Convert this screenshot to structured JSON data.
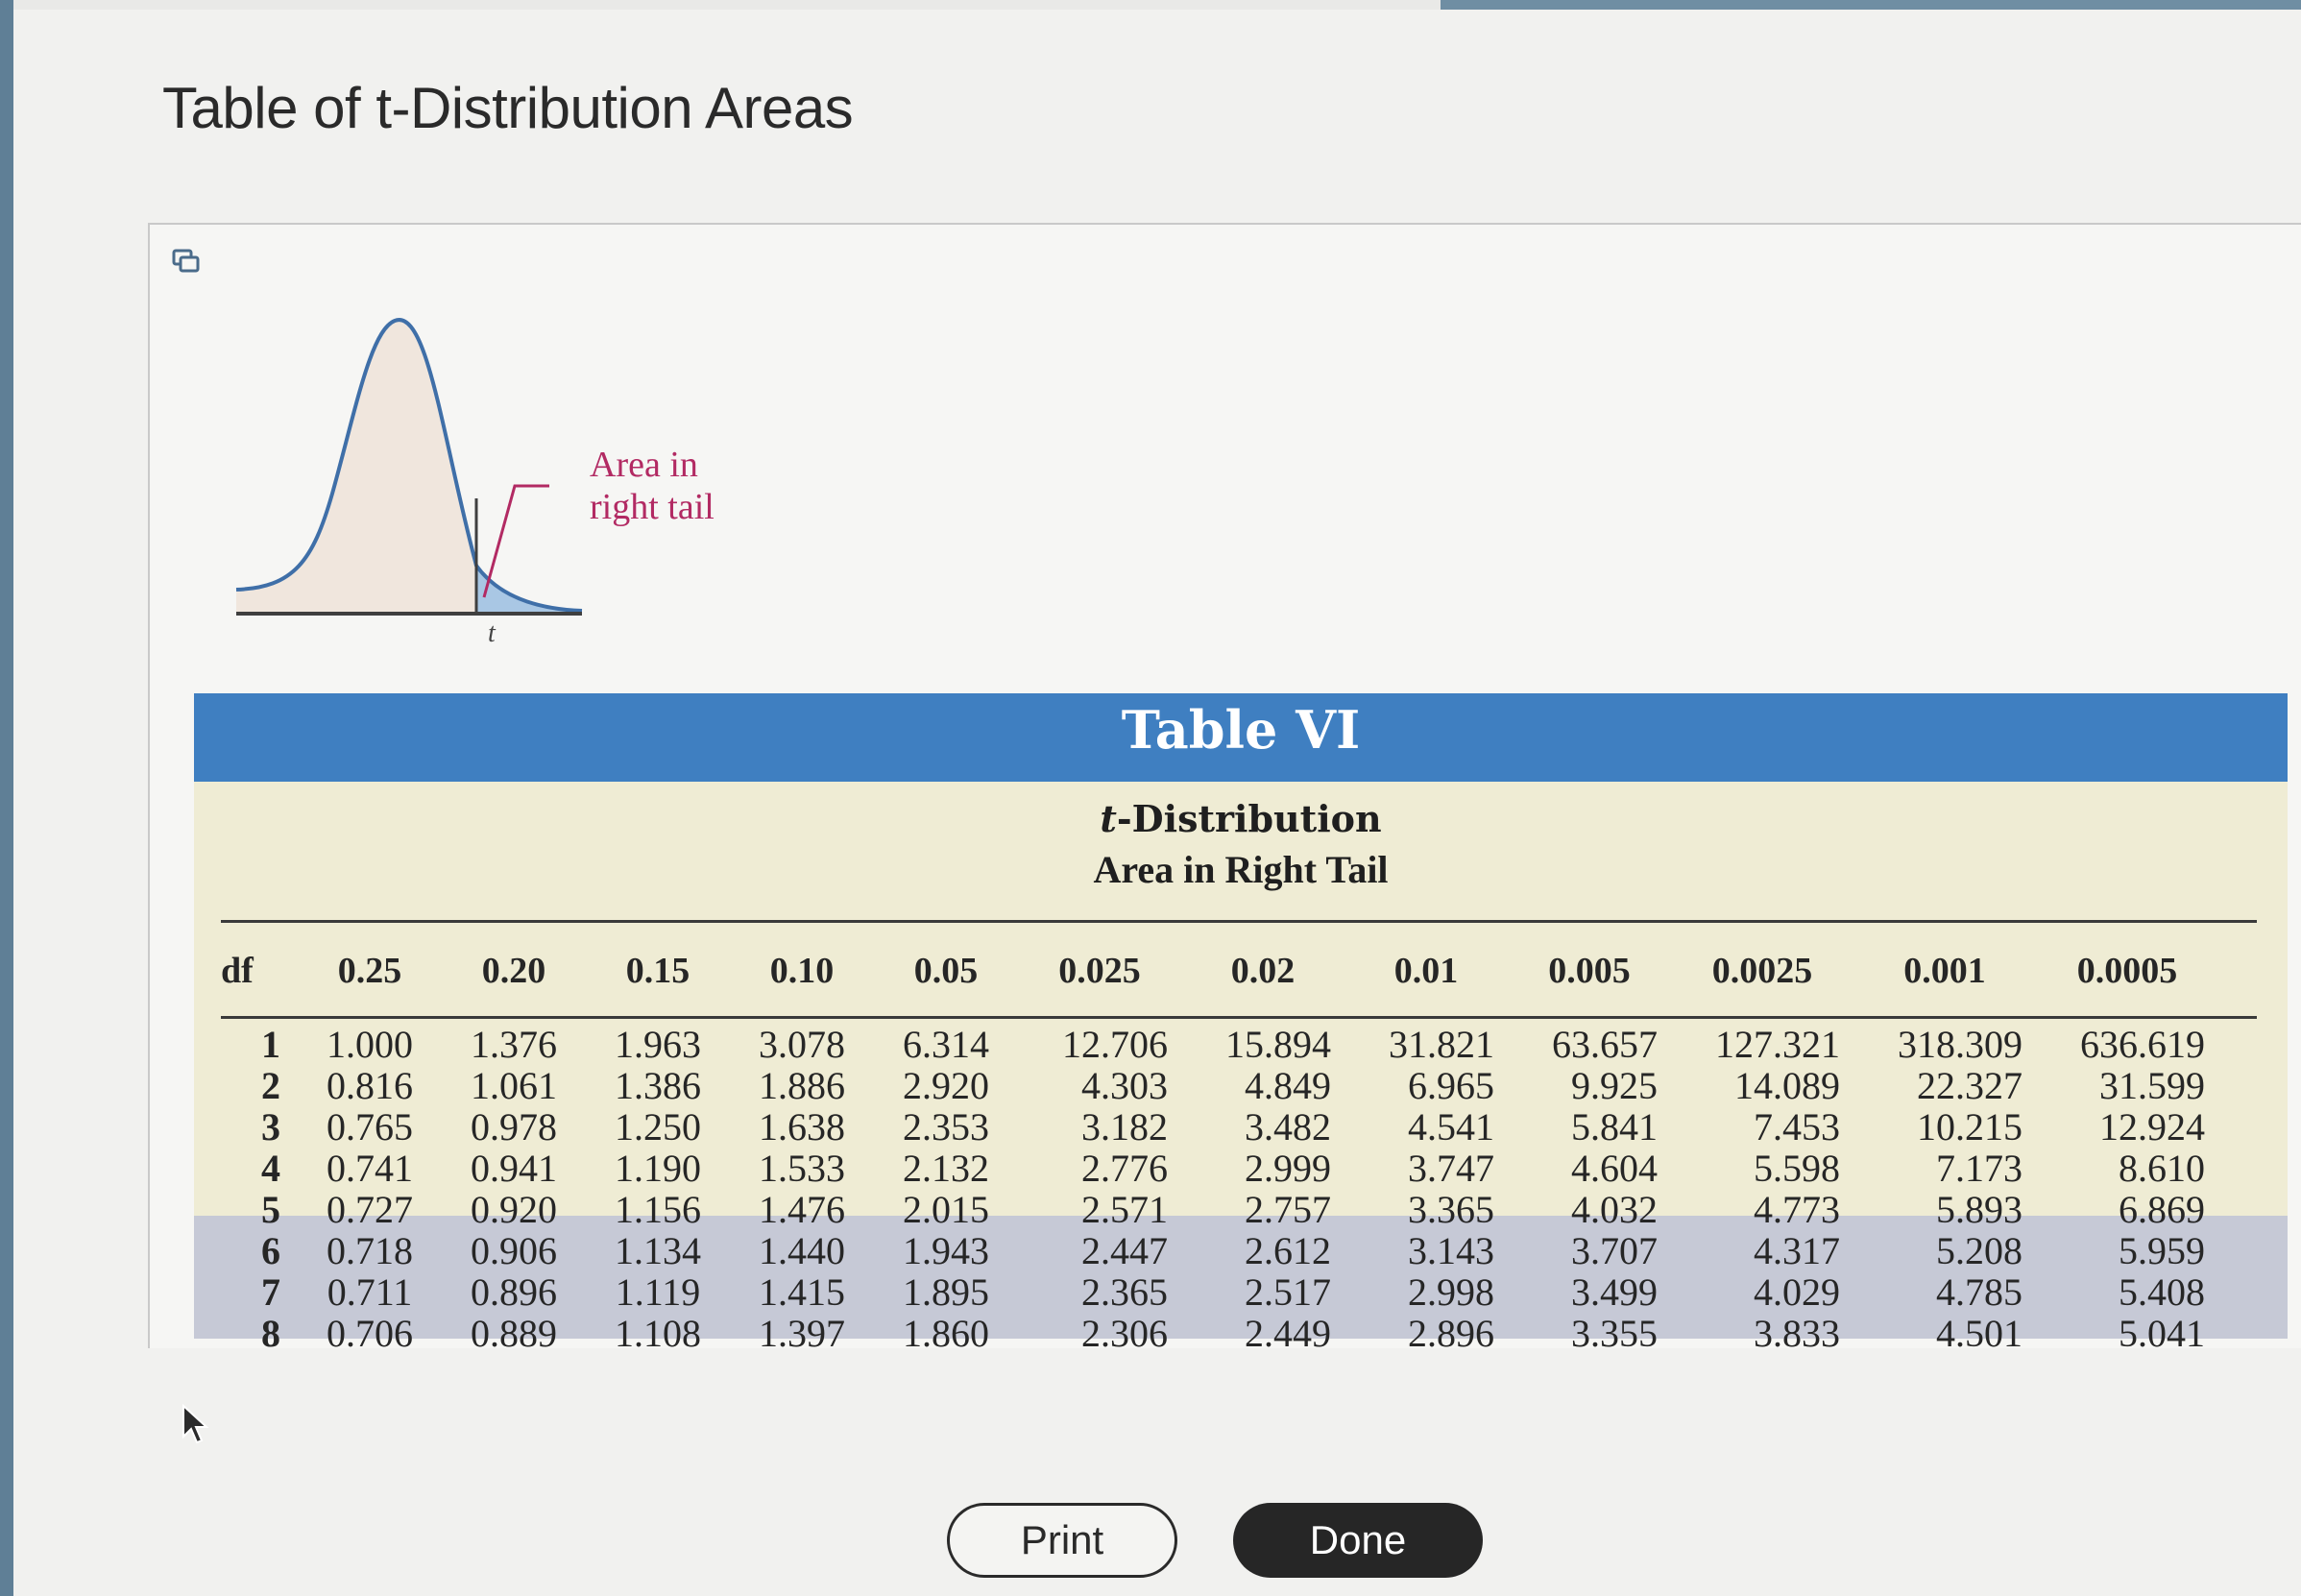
{
  "window": {
    "title": "Table of t-Distribution Areas"
  },
  "figure": {
    "area_label_line1": "Area in",
    "area_label_line2": "right tail",
    "t_label": "t"
  },
  "table": {
    "number": "Table VI",
    "subtitle_italic": "t",
    "subtitle_rest": "-Distribution",
    "area_heading": "Area in Right Tail",
    "df_header": "df",
    "headers": [
      "0.25",
      "0.20",
      "0.15",
      "0.10",
      "0.05",
      "0.025",
      "0.02",
      "0.01",
      "0.005",
      "0.0025",
      "0.001",
      "0.0005"
    ],
    "rows": [
      {
        "df": "1",
        "values": [
          "1.000",
          "1.376",
          "1.963",
          "3.078",
          "6.314",
          "12.706",
          "15.894",
          "31.821",
          "63.657",
          "127.321",
          "318.309",
          "636.619"
        ]
      },
      {
        "df": "2",
        "values": [
          "0.816",
          "1.061",
          "1.386",
          "1.886",
          "2.920",
          "4.303",
          "4.849",
          "6.965",
          "9.925",
          "14.089",
          "22.327",
          "31.599"
        ]
      },
      {
        "df": "3",
        "values": [
          "0.765",
          "0.978",
          "1.250",
          "1.638",
          "2.353",
          "3.182",
          "3.482",
          "4.541",
          "5.841",
          "7.453",
          "10.215",
          "12.924"
        ]
      },
      {
        "df": "4",
        "values": [
          "0.741",
          "0.941",
          "1.190",
          "1.533",
          "2.132",
          "2.776",
          "2.999",
          "3.747",
          "4.604",
          "5.598",
          "7.173",
          "8.610"
        ]
      },
      {
        "df": "5",
        "values": [
          "0.727",
          "0.920",
          "1.156",
          "1.476",
          "2.015",
          "2.571",
          "2.757",
          "3.365",
          "4.032",
          "4.773",
          "5.893",
          "6.869"
        ]
      },
      {
        "df": "6",
        "values": [
          "0.718",
          "0.906",
          "1.134",
          "1.440",
          "1.943",
          "2.447",
          "2.612",
          "3.143",
          "3.707",
          "4.317",
          "5.208",
          "5.959"
        ]
      },
      {
        "df": "7",
        "values": [
          "0.711",
          "0.896",
          "1.119",
          "1.415",
          "1.895",
          "2.365",
          "2.517",
          "2.998",
          "3.499",
          "4.029",
          "4.785",
          "5.408"
        ]
      },
      {
        "df": "8",
        "values": [
          "0.706",
          "0.889",
          "1.108",
          "1.397",
          "1.860",
          "2.306",
          "2.449",
          "2.896",
          "3.355",
          "3.833",
          "4.501",
          "5.041"
        ]
      }
    ]
  },
  "buttons": {
    "print": "Print",
    "done": "Done"
  },
  "icons": {
    "copy": "copy-icon",
    "cursor": "mouse-pointer-icon"
  },
  "colors": {
    "table_band": "#3f7fc1",
    "table_body": "#efecd4",
    "table_lower_band": "#c6c9d6",
    "curve_line": "#3f6fa8",
    "tail_fill": "#a9c7e4",
    "label_color": "#b22a63",
    "done_button": "#262626"
  }
}
